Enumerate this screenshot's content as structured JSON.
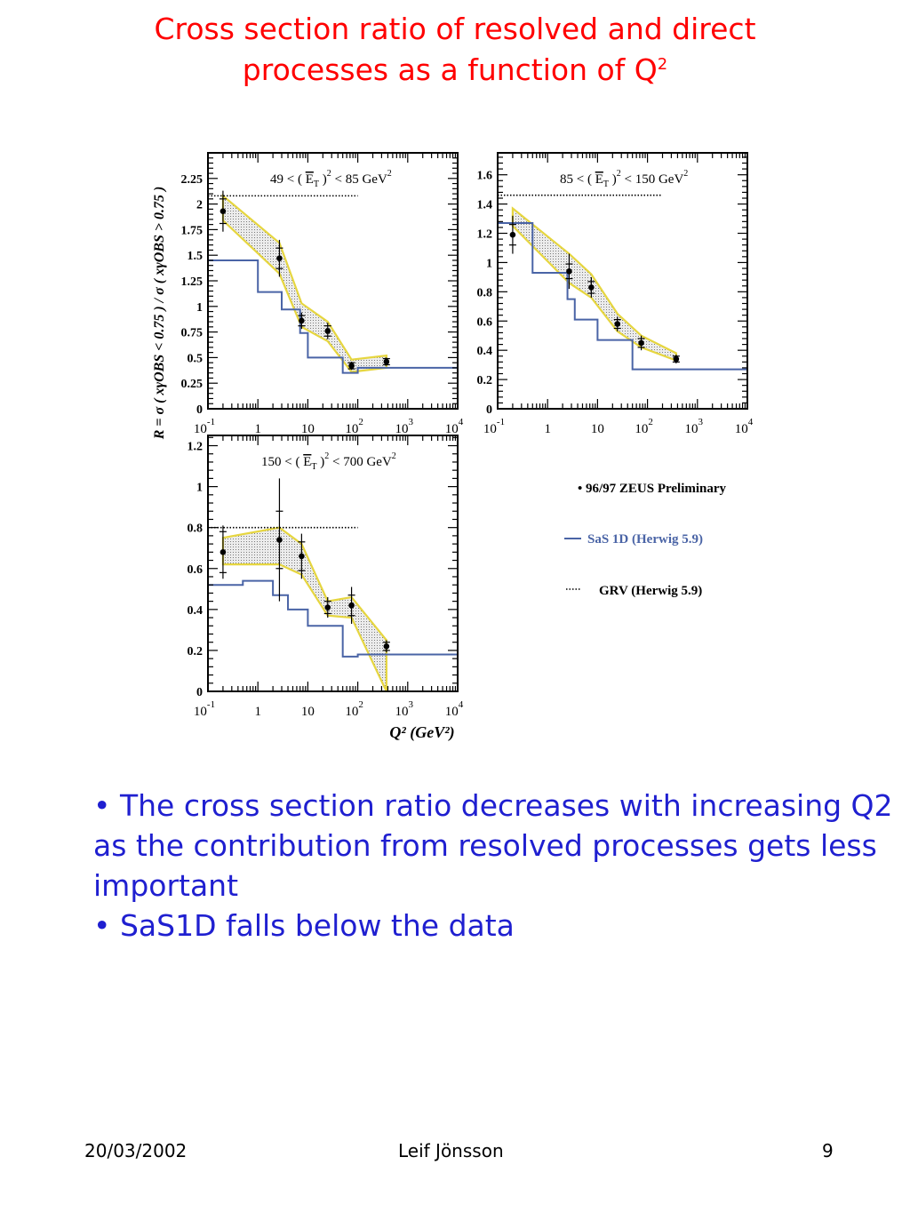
{
  "slide": {
    "title_line1": "Cross section ratio of resolved and direct",
    "title_line2_text": "processes as a function of Q",
    "title_line2_sup": "2",
    "bullets": [
      "The cross section ratio decreases with increasing Q2 as the contribution from resolved processes gets less important",
      "SaS1D falls below the data"
    ],
    "bullet_symbol": "•",
    "footer": {
      "date": "20/03/2002",
      "author": "Leif Jönsson",
      "page": "9"
    }
  },
  "chart_data": [
    {
      "type": "line",
      "title": "49 < (ET)^2 < 85 GeV^2",
      "ylabel": "R = σ ( xγOBS < 0.75 ) / σ ( xγOBS > 0.75 )",
      "xlabel": "",
      "xscale": "log",
      "xlim": [
        0.1,
        10000
      ],
      "ylim": [
        0,
        2.5
      ],
      "yticks": [
        "0",
        "0.25",
        "0.5",
        "0.75",
        "1",
        "1.25",
        "1.5",
        "1.75",
        "2",
        "2.25"
      ],
      "xticks": [
        {
          "base": "10",
          "exp": "-1"
        },
        {
          "base": "1",
          "exp": ""
        },
        {
          "base": "10",
          "exp": ""
        },
        {
          "base": "10",
          "exp": "2"
        },
        {
          "base": "10",
          "exp": "3"
        },
        {
          "base": "10",
          "exp": "4"
        }
      ],
      "data": {
        "x": [
          0.2,
          2.7,
          7.5,
          25,
          75,
          375
        ],
        "y": [
          1.93,
          1.47,
          0.86,
          0.76,
          0.42,
          0.46
        ],
        "err_stat": [
          0.12,
          0.1,
          0.05,
          0.05,
          0.03,
          0.03
        ],
        "err_tot": [
          0.2,
          0.18,
          0.08,
          0.08,
          0.04,
          0.04
        ]
      },
      "band": {
        "upper": [
          2.08,
          1.62,
          1.03,
          0.85,
          0.48,
          0.52
        ],
        "lower": [
          1.84,
          1.32,
          0.8,
          0.66,
          0.36,
          0.4
        ]
      },
      "sas1d": {
        "edges": [
          0.1,
          1,
          3,
          7,
          10,
          50,
          100,
          10000
        ],
        "values": [
          1.45,
          1.14,
          0.97,
          0.74,
          0.5,
          0.35,
          0.4
        ]
      },
      "grv": {
        "x": [
          0.1,
          100
        ],
        "y": [
          2.08,
          2.08
        ]
      }
    },
    {
      "type": "line",
      "title": "85 < (ET)^2 < 150 GeV^2",
      "xlabel": "",
      "xscale": "log",
      "xlim": [
        0.1,
        10000
      ],
      "ylim": [
        0,
        1.75
      ],
      "yticks": [
        "0",
        "0.2",
        "0.4",
        "0.6",
        "0.8",
        "1",
        "1.2",
        "1.4",
        "1.6"
      ],
      "xticks": [
        {
          "base": "10",
          "exp": "-1"
        },
        {
          "base": "1",
          "exp": ""
        },
        {
          "base": "10",
          "exp": ""
        },
        {
          "base": "10",
          "exp": "2"
        },
        {
          "base": "10",
          "exp": "3"
        },
        {
          "base": "10",
          "exp": "4"
        }
      ],
      "data": {
        "x": [
          0.2,
          2.7,
          7.5,
          25,
          75,
          375
        ],
        "y": [
          1.19,
          0.94,
          0.83,
          0.58,
          0.45,
          0.34
        ],
        "err_stat": [
          0.07,
          0.05,
          0.04,
          0.03,
          0.03,
          0.02
        ],
        "err_tot": [
          0.13,
          0.12,
          0.07,
          0.05,
          0.05,
          0.03
        ]
      },
      "band": {
        "upper": [
          1.37,
          1.06,
          0.92,
          0.65,
          0.5,
          0.38
        ],
        "lower": [
          1.25,
          0.86,
          0.76,
          0.53,
          0.42,
          0.33
        ]
      },
      "sas1d": {
        "edges": [
          0.1,
          0.2,
          0.5,
          2.5,
          3.5,
          10,
          50,
          10000
        ],
        "values": [
          1.27,
          1.27,
          0.93,
          0.75,
          0.61,
          0.47,
          0.27
        ]
      },
      "grv": {
        "x": [
          0.1,
          200
        ],
        "y": [
          1.46,
          1.46
        ]
      }
    },
    {
      "type": "line",
      "title": "150 < (ET)^2 < 700 GeV^2",
      "xlabel": "Q² (GeV²)",
      "xscale": "log",
      "xlim": [
        0.1,
        10000
      ],
      "ylim": [
        0,
        1.25
      ],
      "yticks": [
        "0",
        "0.2",
        "0.4",
        "0.6",
        "0.8",
        "1",
        "1.2"
      ],
      "xticks": [
        {
          "base": "10",
          "exp": "-1"
        },
        {
          "base": "1",
          "exp": ""
        },
        {
          "base": "10",
          "exp": ""
        },
        {
          "base": "10",
          "exp": "2"
        },
        {
          "base": "10",
          "exp": "3"
        },
        {
          "base": "10",
          "exp": "4"
        }
      ],
      "data": {
        "x": [
          0.2,
          2.7,
          7.5,
          25,
          75,
          375
        ],
        "y": [
          0.68,
          0.74,
          0.66,
          0.41,
          0.42,
          0.22
        ],
        "err_stat": [
          0.1,
          0.14,
          0.07,
          0.03,
          0.05,
          0.02
        ],
        "err_tot": [
          0.13,
          0.3,
          0.11,
          0.05,
          0.09,
          0.03
        ]
      },
      "band": {
        "upper": [
          0.75,
          0.8,
          0.72,
          0.44,
          0.46,
          0.25
        ],
        "lower": [
          0.62,
          0.62,
          0.57,
          0.37,
          0.36,
          0.0
        ]
      },
      "sas1d": {
        "edges": [
          0.1,
          0.5,
          2,
          4,
          10,
          50,
          100,
          10000
        ],
        "values": [
          0.52,
          0.54,
          0.47,
          0.4,
          0.32,
          0.17,
          0.18
        ]
      },
      "grv": {
        "x": [
          0.1,
          100
        ],
        "y": [
          0.8,
          0.8
        ]
      }
    }
  ],
  "legend": {
    "data_label": "• 96/97 ZEUS Preliminary",
    "sas_label": "SaS 1D (Herwig 5.9)",
    "grv_label": "GRV (Herwig 5.9)"
  },
  "colors": {
    "title": "#ff0000",
    "bullets": "#1f1fd0",
    "sas_line": "#4a64a6",
    "band_edge": "#e6d640",
    "band_fill": "#c9c9c9"
  }
}
